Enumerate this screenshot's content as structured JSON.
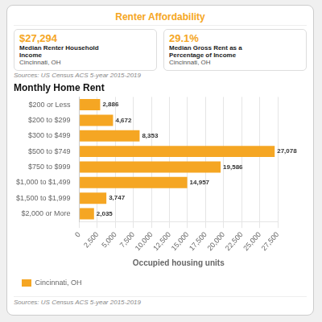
{
  "chart_data": {
    "type": "bar",
    "orientation": "horizontal",
    "title": "Renter Affordability",
    "subtitle": "Monthly Home Rent",
    "annotations": [
      "$27,294",
      "Median Renter Household",
      "Income",
      "Cincinnati, OH",
      "29.1%",
      "Median Gross Rent as a",
      "Percentage of Income",
      "Cincinnati, OH",
      "Sources: US Census ACS 5-year 2015-2019",
      "Sources: US Census ACS 5-year 2015-2019"
    ],
    "xlabel": "Occupied housing units",
    "categories": [
      "$200 or Less",
      "$200 to $299",
      "$300 to $499",
      "$500 to $749",
      "$750 to $999",
      "$1,000 to $1,499",
      "$1,500 to $1,999",
      "$2,000 or More"
    ],
    "series": [
      {
        "name": "Cincinnati, OH",
        "color": "#f5a623",
        "values": [
          2886,
          4672,
          8353,
          27078,
          19586,
          14957,
          3747,
          2035
        ],
        "value_labels": [
          "2,886",
          "4,672",
          "8,353",
          "27,078",
          "19,586",
          "14,957",
          "3,747",
          "2,035"
        ]
      }
    ],
    "data_labels": true,
    "xlim": [
      0,
      27500
    ],
    "xticks": [
      0,
      {
        "value": 2500,
        "label": "2,500"
      },
      {
        "value": 5000,
        "label": "5,000"
      },
      {
        "value": 7500,
        "label": "7,500"
      },
      {
        "value": 10000,
        "label": "10,000"
      },
      {
        "value": 12500,
        "label": "12,500"
      },
      {
        "value": 15000,
        "label": "15,000"
      },
      {
        "value": 17500,
        "label": "17,500"
      },
      {
        "value": 20000,
        "label": "20,000"
      },
      {
        "value": 22500,
        "label": "22,500"
      },
      {
        "value": 25000,
        "label": "25,000"
      },
      {
        "value": 27500,
        "label": "27,500"
      }
    ],
    "grid": true,
    "legend": "bottom"
  }
}
